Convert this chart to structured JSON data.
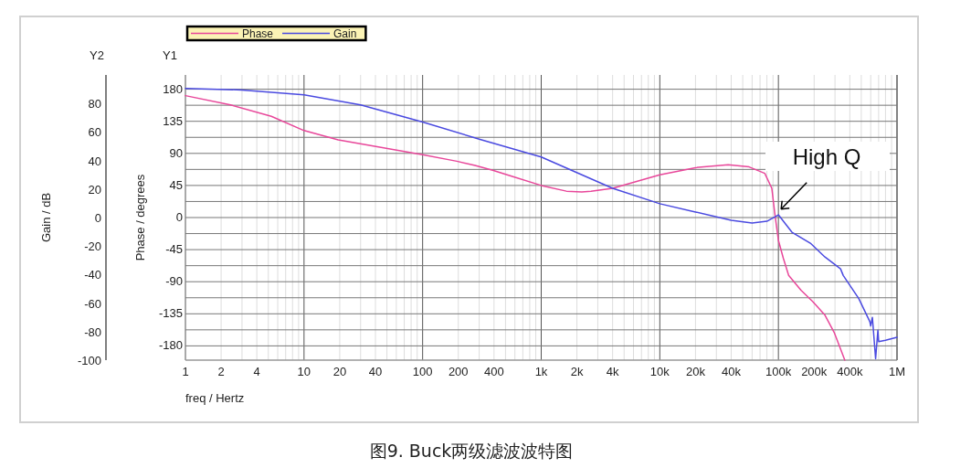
{
  "chart_data": {
    "type": "line",
    "title": "图9. Buck两级滤波波特图",
    "xlabel": "freq / Hertz",
    "ylabel": "Phase / degrees",
    "y2label": "Gain / dB",
    "log": "x",
    "grid": true,
    "legend": "top left",
    "line_style": "solid",
    "xlim": [
      1,
      1000000
    ],
    "xticks": [
      1,
      2,
      {
        "value": 3,
        "label": null
      },
      4,
      {
        "value": 5,
        "label": null
      },
      {
        "value": 6,
        "label": null
      },
      {
        "value": 7,
        "label": null
      },
      {
        "value": 8,
        "label": null
      },
      {
        "value": 9,
        "label": null
      },
      10,
      20,
      {
        "value": 30,
        "label": null
      },
      40,
      {
        "value": 50,
        "label": null
      },
      {
        "value": 60,
        "label": null
      },
      {
        "value": 70,
        "label": null
      },
      {
        "value": 80,
        "label": null
      },
      {
        "value": 90,
        "label": null
      },
      100,
      200,
      {
        "value": 300,
        "label": null
      },
      400,
      {
        "value": 500,
        "label": null
      },
      {
        "value": 600,
        "label": null
      },
      {
        "value": 700,
        "label": null
      },
      {
        "value": 800,
        "label": null
      },
      {
        "value": 900,
        "label": null
      },
      {
        "value": 1000,
        "label": "1k"
      },
      {
        "value": 2000,
        "label": "2k"
      },
      {
        "value": 3000,
        "label": null
      },
      {
        "value": 4000,
        "label": "4k"
      },
      {
        "value": 5000,
        "label": null
      },
      {
        "value": 6000,
        "label": null
      },
      {
        "value": 7000,
        "label": null
      },
      {
        "value": 8000,
        "label": null
      },
      {
        "value": 9000,
        "label": null
      },
      {
        "value": 10000,
        "label": "10k"
      },
      {
        "value": 20000,
        "label": "20k"
      },
      {
        "value": 30000,
        "label": null
      },
      {
        "value": 40000,
        "label": "40k"
      },
      {
        "value": 50000,
        "label": null
      },
      {
        "value": 60000,
        "label": null
      },
      {
        "value": 70000,
        "label": null
      },
      {
        "value": 80000,
        "label": null
      },
      {
        "value": 90000,
        "label": null
      },
      {
        "value": 100000,
        "label": "100k"
      },
      {
        "value": 200000,
        "label": "200k"
      },
      {
        "value": 300000,
        "label": null
      },
      {
        "value": 400000,
        "label": "400k"
      },
      {
        "value": 500000,
        "label": null
      },
      {
        "value": 600000,
        "label": null
      },
      {
        "value": 700000,
        "label": null
      },
      {
        "value": 800000,
        "label": null
      },
      {
        "value": 900000,
        "label": null
      },
      {
        "value": 1000000,
        "label": "1M"
      }
    ],
    "ylim": [
      -200,
      200
    ],
    "yticks": [
      -180,
      {
        "value": -157.5,
        "label": null
      },
      -135,
      {
        "value": -112.5,
        "label": null
      },
      -90,
      {
        "value": -67.5,
        "label": null
      },
      -45,
      {
        "value": -22.5,
        "label": null
      },
      0,
      {
        "value": 22.5,
        "label": null
      },
      45,
      {
        "value": 67.5,
        "label": null
      },
      90,
      {
        "value": 112.5,
        "label": null
      },
      135,
      {
        "value": 157.5,
        "label": null
      },
      180
    ],
    "y2lim": [
      -100,
      100
    ],
    "y2ticks": [
      -100,
      -80,
      -60,
      -40,
      -20,
      0,
      20,
      40,
      60,
      80
    ],
    "annotations": [
      "Y2",
      "Y1",
      {
        "text": "High Q",
        "x": 100000,
        "y": 8
      }
    ],
    "series": [
      {
        "name": "Phase",
        "color": "#e8479a",
        "x": [
          1,
          2.4,
          5.3,
          10,
          19.4,
          100,
          194,
          277,
          395,
          562,
          1000,
          1630,
          2200,
          2630,
          4000,
          10000,
          20000,
          37700,
          56600,
          76700,
          88000,
          93000,
          100000,
          110000,
          122000,
          155000,
          195000,
          247000,
          295000,
          363000
        ],
        "values": [
          171,
          158,
          142,
          122,
          109,
          88,
          79,
          73,
          66,
          58,
          45,
          37,
          36,
          37,
          41,
          60,
          70,
          74,
          71,
          62,
          41,
          7,
          -32,
          -57,
          -81,
          -102,
          -118,
          -137,
          -161,
          -200
        ]
      },
      {
        "name": "Gain",
        "color": "#4a4ae0",
        "axis": "y2",
        "x": [
          1,
          3,
          10,
          30,
          100,
          300,
          1000,
          4000,
          10000,
          20000,
          40000,
          60000,
          80000,
          100000,
          130000,
          186000,
          247000,
          334000,
          352000,
          476000,
          590000,
          600000,
          620000,
          660000,
          690000,
          700000,
          800000,
          1000000
        ],
        "values": [
          90.5,
          89.5,
          86,
          79,
          67,
          55,
          42.5,
          20.5,
          9.7,
          3.9,
          -1.9,
          -3.9,
          -2.6,
          1.9,
          -10.3,
          -18,
          -27.7,
          -36,
          -40.6,
          -56.8,
          -73,
          -76,
          -70,
          -99,
          -79,
          -87,
          -86,
          -84
        ]
      }
    ]
  }
}
